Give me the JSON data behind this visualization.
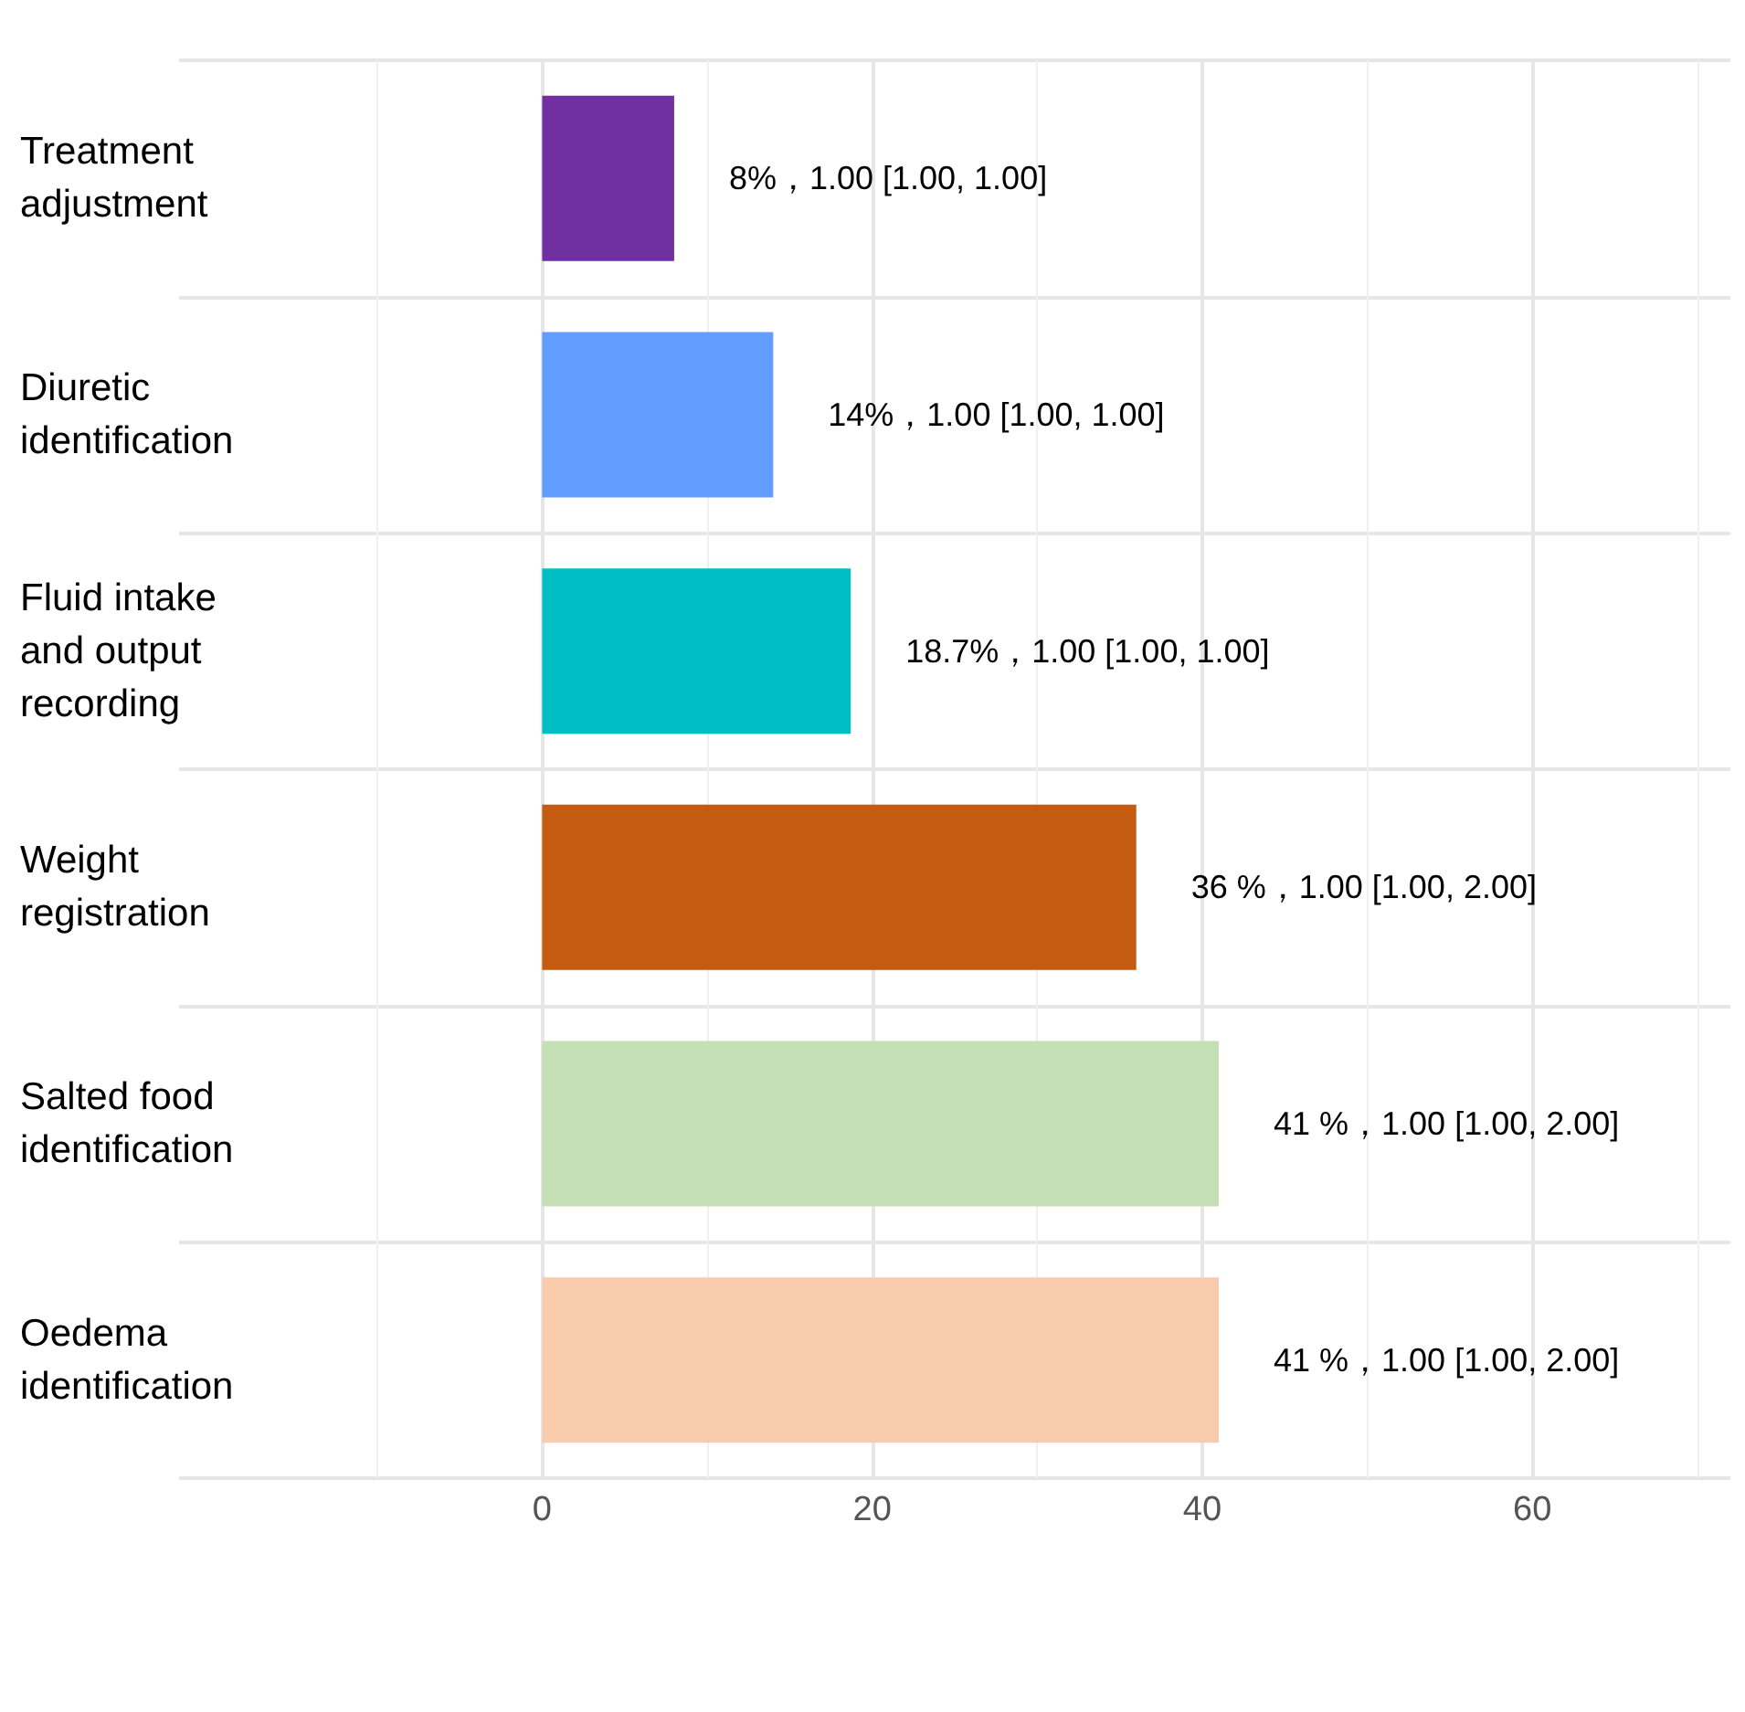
{
  "chart_data": {
    "type": "bar",
    "orientation": "horizontal",
    "categories": [
      "Treatment adjustment",
      "Diuretic identification",
      "Fluid intake and output recording",
      "Weight registration",
      "Salted food identification",
      "Oedema identification"
    ],
    "values": [
      8,
      14,
      18.7,
      36,
      41,
      41
    ],
    "colors": [
      "#7030a0",
      "#619cff",
      "#00bfc4",
      "#c55a11",
      "#c5e0b4",
      "#f8cbad"
    ],
    "value_labels": [
      "8%，1.00 [1.00, 1.00]",
      "14%，1.00 [1.00, 1.00]",
      "18.7%，1.00 [1.00, 1.00]",
      "36 %，1.00 [1.00, 2.00]",
      "41 %，1.00 [1.00, 2.00]",
      "41 %，1.00 [1.00, 2.00]"
    ],
    "xlim": [
      -22,
      72
    ],
    "xticks": [
      0,
      20,
      40,
      60
    ],
    "grid": true
  }
}
